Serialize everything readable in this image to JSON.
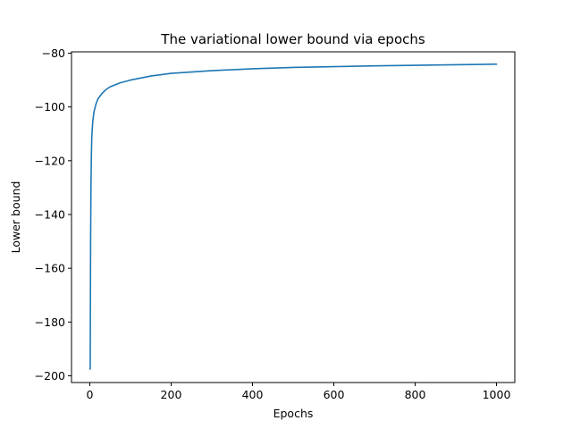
{
  "chart_data": {
    "type": "line",
    "title": "The variational lower bound via epochs",
    "xlabel": "Epochs",
    "ylabel": "Lower bound",
    "xlim": [
      -45,
      1045
    ],
    "ylim": [
      -202.5,
      -79.5
    ],
    "xticks": [
      0,
      200,
      400,
      600,
      800,
      1000
    ],
    "xtick_labels": [
      "0",
      "200",
      "400",
      "600",
      "800",
      "1000"
    ],
    "yticks": [
      -200,
      -180,
      -160,
      -140,
      -120,
      -100,
      -80
    ],
    "ytick_labels": [
      "−200",
      "−180",
      "−160",
      "−140",
      "−120",
      "−100",
      "−80"
    ],
    "grid": false,
    "series": [
      {
        "color": "#1f77b4",
        "x": [
          1,
          2,
          3,
          4,
          5,
          7,
          10,
          15,
          20,
          30,
          40,
          50,
          75,
          100,
          150,
          200,
          250,
          300,
          400,
          500,
          600,
          700,
          800,
          900,
          1000
        ],
        "y": [
          -197.5,
          -150,
          -128,
          -117,
          -111,
          -106,
          -102,
          -99,
          -97,
          -95,
          -93.5,
          -92.5,
          -91,
          -90,
          -88.5,
          -87.5,
          -87,
          -86.5,
          -85.8,
          -85.3,
          -85,
          -84.7,
          -84.5,
          -84.3,
          -84.1
        ]
      }
    ]
  }
}
